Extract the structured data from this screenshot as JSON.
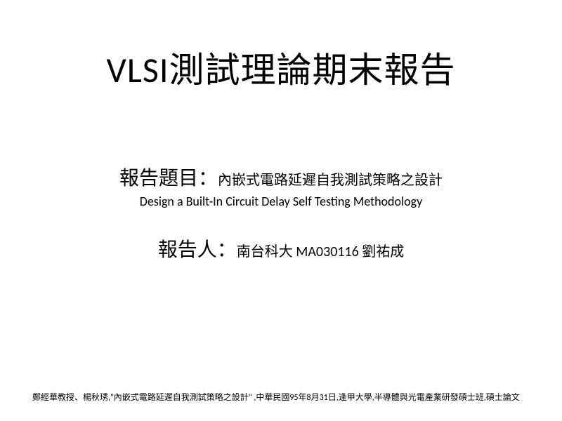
{
  "slide": {
    "title": "VLSI測試理論期末報告",
    "topic_label": "報告題目：",
    "topic_text": "內嵌式電路延遲自我測試策略之設計",
    "topic_english": "Design a Built-In Circuit Delay Self Testing Methodology",
    "presenter_label": "報告人：",
    "presenter_text": "南台科大 MA030116 劉祐成",
    "footnote": "鄭經華教授、楊秋琇,\"內嵌式電路延遲自我測試策略之設計\" ,中華民國95年8月31日,逢甲大學,半導體與光電產業研發碩士班,碩士論文",
    "colors": {
      "background": "#ffffff",
      "text": "#000000"
    },
    "typography": {
      "title_fontsize": 50,
      "label_fontsize": 28,
      "body_fontsize": 20,
      "english_fontsize": 18,
      "footnote_fontsize": 12,
      "font_family": "Microsoft JhengHei"
    }
  }
}
